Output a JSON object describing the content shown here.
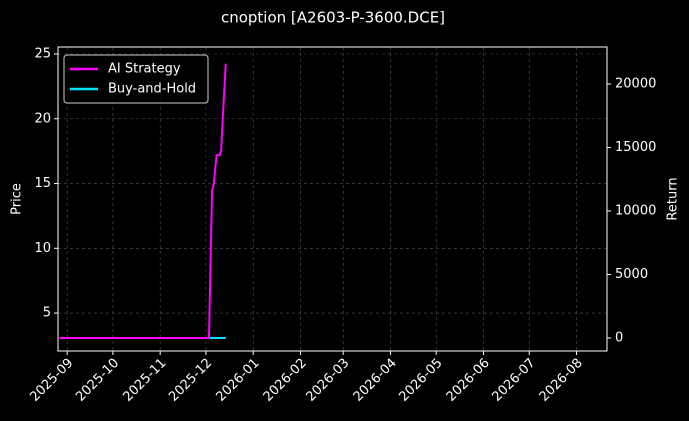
{
  "chart_data": {
    "type": "line",
    "title": "cnoption [A2603-P-3600.DCE]",
    "ylabel": "Price",
    "y2label": "Return",
    "xlim": [
      "2025-08-26",
      "2026-08-21"
    ],
    "xticks": [
      "2025-09",
      "2025-10",
      "2025-11",
      "2025-12",
      "2026-01",
      "2026-02",
      "2026-03",
      "2026-04",
      "2026-05",
      "2026-06",
      "2026-07",
      "2026-08"
    ],
    "ylim": [
      2.07,
      25.54
    ],
    "yticks": [
      5,
      10,
      15,
      20,
      25
    ],
    "y2lim": [
      -1024,
      22913
    ],
    "y2ticks": [
      0,
      5000,
      10000,
      15000,
      20000
    ],
    "grid": true,
    "legend": "upper left",
    "series": [
      {
        "name": "AI Strategy",
        "color": "#ff00ff",
        "axis": "y2",
        "x": [
          "2025-08-27",
          "2025-10-01",
          "2025-11-01",
          "2025-12-03",
          "2025-12-05",
          "2025-12-06",
          "2025-12-08",
          "2025-12-10",
          "2025-12-11",
          "2025-12-12",
          "2025-12-14"
        ],
        "values": [
          0,
          0,
          0,
          0,
          11600,
          12000,
          14400,
          14400,
          14800,
          17200,
          21600
        ]
      },
      {
        "name": "Buy-and-Hold",
        "color": "#00e5ff",
        "axis": "y2",
        "x": [
          "2025-08-27",
          "2025-12-14"
        ],
        "values": [
          0,
          0
        ]
      }
    ]
  }
}
